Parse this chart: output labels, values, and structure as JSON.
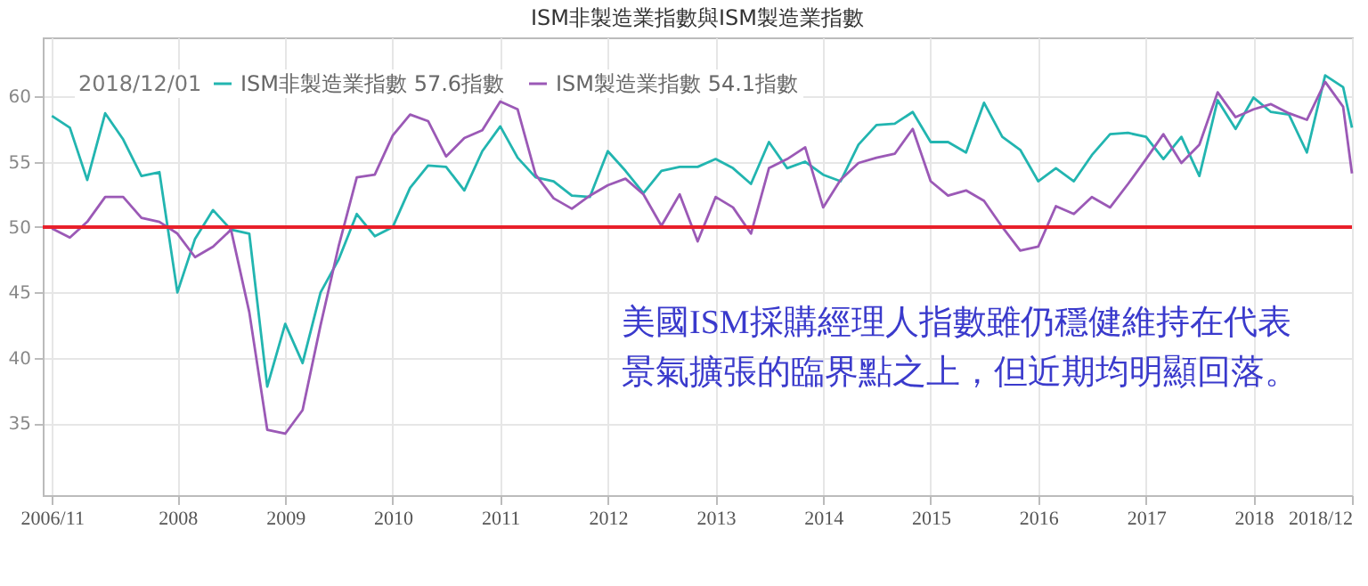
{
  "chart_data": {
    "type": "line",
    "title": "ISM非製造業指數與ISM製造業指數",
    "legend_title": "2018/12/01",
    "x": [
      "2006-11",
      "2007-01",
      "2007-03",
      "2007-05",
      "2007-07",
      "2007-09",
      "2007-11",
      "2008-01",
      "2008-03",
      "2008-05",
      "2008-07",
      "2008-09",
      "2008-11",
      "2009-01",
      "2009-03",
      "2009-05",
      "2009-07",
      "2009-09",
      "2009-11",
      "2010-01",
      "2010-03",
      "2010-05",
      "2010-07",
      "2010-09",
      "2010-11",
      "2011-01",
      "2011-03",
      "2011-05",
      "2011-07",
      "2011-09",
      "2011-11",
      "2012-01",
      "2012-03",
      "2012-05",
      "2012-07",
      "2012-09",
      "2012-11",
      "2013-01",
      "2013-03",
      "2013-05",
      "2013-07",
      "2013-09",
      "2013-11",
      "2014-01",
      "2014-03",
      "2014-05",
      "2014-07",
      "2014-09",
      "2014-11",
      "2015-01",
      "2015-03",
      "2015-05",
      "2015-07",
      "2015-09",
      "2015-11",
      "2016-01",
      "2016-03",
      "2016-05",
      "2016-07",
      "2016-09",
      "2016-11",
      "2017-01",
      "2017-03",
      "2017-05",
      "2017-07",
      "2017-09",
      "2017-11",
      "2018-01",
      "2018-03",
      "2018-05",
      "2018-07",
      "2018-09",
      "2018-11",
      "2018-12"
    ],
    "series": [
      {
        "name": "ISM非製造業指數 57.6指數",
        "color": "#22b5b0",
        "values": [
          58.5,
          57.6,
          53.6,
          58.7,
          56.7,
          53.9,
          54.2,
          45,
          49.1,
          51.3,
          49.8,
          49.5,
          37.8,
          42.6,
          39.6,
          45,
          47.5,
          51,
          49.3,
          50,
          53,
          54.7,
          54.6,
          52.8,
          55.8,
          57.7,
          55.3,
          53.8,
          53.5,
          52.4,
          52.3,
          55.8,
          54.3,
          52.6,
          54.3,
          54.6,
          54.6,
          55.2,
          54.5,
          53.3,
          56.5,
          54.5,
          55,
          54,
          53.5,
          56.3,
          57.8,
          57.9,
          58.8,
          56.5,
          56.5,
          55.7,
          59.5,
          56.9,
          55.9,
          53.5,
          54.5,
          53.5,
          55.5,
          57.1,
          57.2,
          56.9,
          55.2,
          56.9,
          53.9,
          59.7,
          57.5,
          59.9,
          58.8,
          58.6,
          55.7,
          61.6,
          60.7,
          57.6
        ]
      },
      {
        "name": "ISM製造業指數 54.1指數",
        "color": "#9b59b6",
        "values": [
          49.9,
          49.2,
          50.4,
          52.3,
          52.3,
          50.7,
          50.4,
          49.5,
          47.7,
          48.5,
          49.8,
          43.5,
          34.5,
          34.2,
          36,
          42.5,
          48.5,
          53.8,
          54,
          57,
          58.6,
          58.1,
          55.4,
          56.8,
          57.4,
          59.6,
          59,
          54,
          52.2,
          51.4,
          52.4,
          53.2,
          53.7,
          52.5,
          50.1,
          52.5,
          48.9,
          52.3,
          51.5,
          49.5,
          54.5,
          55.2,
          56.1,
          51.5,
          53.6,
          54.9,
          55.3,
          55.6,
          57.5,
          53.5,
          52.4,
          52.8,
          52,
          50,
          48.2,
          48.5,
          51.6,
          51,
          52.3,
          51.5,
          53.3,
          55.2,
          57.1,
          54.9,
          56.3,
          60.3,
          58.4,
          59,
          59.4,
          58.7,
          58.2,
          61.1,
          59.2,
          54.1
        ]
      }
    ],
    "xlim": [
      "2006-10",
      "2018-12"
    ],
    "xticks": [
      {
        "value": "2006-11",
        "label": "2006/11"
      },
      {
        "value": "2008",
        "label": "2008"
      },
      {
        "value": "2009",
        "label": "2009"
      },
      {
        "value": "2010",
        "label": "2010"
      },
      {
        "value": "2011",
        "label": "2011"
      },
      {
        "value": "2012",
        "label": "2012"
      },
      {
        "value": "2013",
        "label": "2013"
      },
      {
        "value": "2014",
        "label": "2014"
      },
      {
        "value": "2015",
        "label": "2015"
      },
      {
        "value": "2016",
        "label": "2016"
      },
      {
        "value": "2017",
        "label": "2017"
      },
      {
        "value": "2018",
        "label": "2018"
      },
      {
        "value": "2018-12",
        "label": "2018/12"
      }
    ],
    "ylim": [
      29.5,
      64.5
    ],
    "yticks": [
      35,
      40,
      45,
      50,
      55,
      60
    ],
    "grid": true,
    "legend": "top left",
    "ref_lines": [
      {
        "axis": "y",
        "value": 50,
        "color": "#e8202a"
      }
    ],
    "annotations": [
      "美國ISM採購經理人指數雖仍穩健維持在代表",
      "景氣擴張的臨界點之上，但近期均明顯回落。"
    ]
  }
}
